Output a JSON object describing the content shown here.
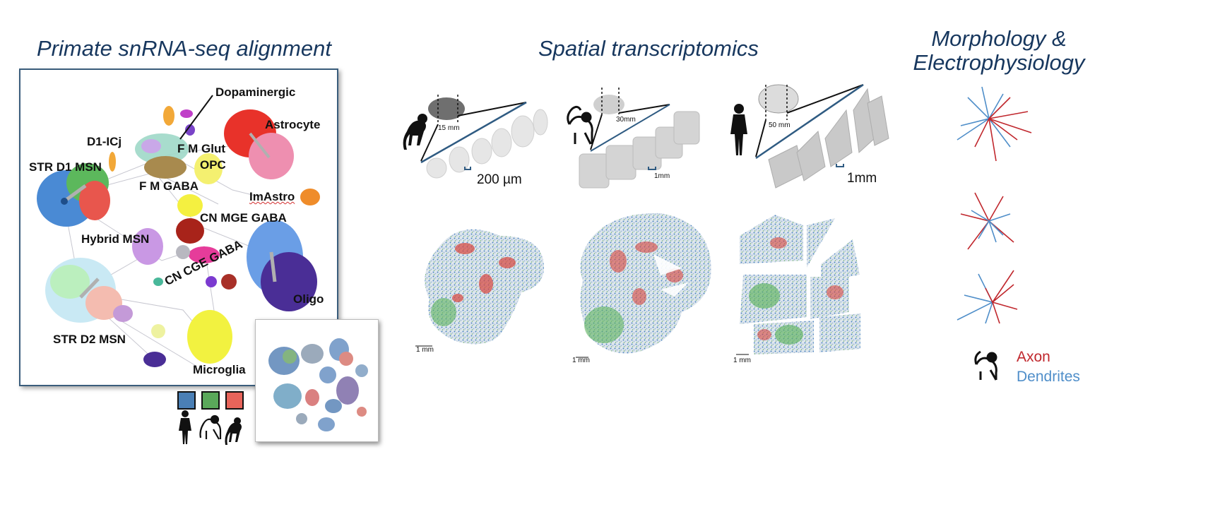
{
  "titles": {
    "alignment": "Primate snRNA-seq alignment",
    "spatial": "Spatial transcriptomics",
    "morph_line1": "Morphology &",
    "morph_line2": "Electrophysiology"
  },
  "clusters": {
    "dopaminergic": "Dopaminergic",
    "astrocyte": "Astrocyte",
    "d1_icj": "D1-ICj",
    "fm_glut": "F M Glut",
    "str_d1": "STR D1 MSN",
    "opc": "OPC",
    "fm_gaba": "F M GABA",
    "imastro": "ImAstro",
    "cn_mge": "CN MGE GABA",
    "hybrid": "Hybrid MSN",
    "cn_cge": "CN CGE GABA",
    "oligo": "Oligo",
    "str_d2": "STR D2 MSN",
    "microglia": "Microglia"
  },
  "species_colors": {
    "human": "#4a7fb5",
    "macaque": "#5aa85a",
    "marmoset": "#e8645a"
  },
  "spatial": {
    "marmoset": {
      "zoom": "15 mm",
      "scale": "200 µm",
      "scalebar": "1 mm"
    },
    "macaque": {
      "zoom": "30mm",
      "scale": "1mm",
      "scalebar": "1 mm"
    },
    "human": {
      "zoom": "50 mm",
      "scale": "1mm",
      "scalebar": "1 mm"
    }
  },
  "morphology_legend": {
    "axon": "Axon",
    "dendrites": "Dendrites",
    "axon_color": "#c0272d",
    "dendrites_color": "#4f8ec9"
  }
}
